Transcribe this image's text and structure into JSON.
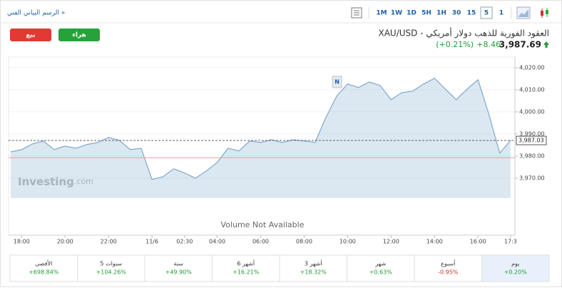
{
  "toolbar": {
    "link": "الرسم البياني الفني »",
    "timeframes": [
      "1M",
      "1W",
      "1D",
      "5H",
      "1H",
      "30",
      "15",
      "5",
      "1"
    ],
    "selected_index": 7
  },
  "header": {
    "sell": "بيع",
    "buy": "هراء",
    "title": "XAU/USD - العقود الفورية للذهب دولار أمريكي",
    "price": "3,987.69",
    "change": "+8.46",
    "change_pct": "(+0.21%)"
  },
  "chart_data": {
    "type": "area",
    "x": [
      -1,
      0,
      1,
      2,
      3,
      4,
      5,
      6,
      7,
      8,
      9,
      10,
      11,
      12,
      13,
      14,
      15,
      16,
      17,
      18,
      19,
      20,
      21,
      22,
      23,
      24,
      25,
      26,
      27,
      28,
      29,
      30,
      31,
      32,
      33,
      34,
      35,
      36,
      37,
      38,
      39,
      40,
      41,
      42,
      43,
      44,
      45
    ],
    "values": [
      3981.9,
      3982.9,
      3985.5,
      3986.8,
      3982.9,
      3984.5,
      3983.5,
      3985.2,
      3986.1,
      3988.4,
      3987.1,
      3982.9,
      3983.5,
      3969.4,
      3970.6,
      3974.2,
      3972.3,
      3970.0,
      3973.2,
      3977.1,
      3983.5,
      3982.3,
      3986.8,
      3986.1,
      3987.4,
      3986.1,
      3987.4,
      3986.8,
      3986.1,
      3997.4,
      4007.1,
      4012.6,
      4011.0,
      4013.5,
      4011.9,
      4005.5,
      4008.7,
      4009.4,
      4012.6,
      4015.2,
      4010.3,
      4005.5,
      4010.3,
      4014.5,
      3999.0,
      3981.3,
      3987.1
    ],
    "color": "#7fa8cc",
    "xlim": [
      -1.2,
      45.4
    ],
    "xticks": [
      {
        "value": 0,
        "label": "18:00"
      },
      {
        "value": 4,
        "label": "20:00"
      },
      {
        "value": 8,
        "label": "22:00"
      },
      {
        "value": 12,
        "label": "11/6"
      },
      {
        "value": 15,
        "label": "02:30"
      },
      {
        "value": 18,
        "label": "04:00"
      },
      {
        "value": 22,
        "label": "06:00"
      },
      {
        "value": 26,
        "label": "08:00"
      },
      {
        "value": 30,
        "label": "10:00"
      },
      {
        "value": 34,
        "label": "12:00"
      },
      {
        "value": 38,
        "label": "14:00"
      },
      {
        "value": 42,
        "label": "16:00"
      },
      {
        "value": 45,
        "label": "17:3"
      }
    ],
    "ylim": [
      3944.2,
      4024.8
    ],
    "yticks": [
      {
        "value": 3970,
        "label": "3,970.00"
      },
      {
        "value": 3980,
        "label": "3,980.00"
      },
      {
        "value": 3990,
        "label": "3,990.00"
      },
      {
        "value": 4000,
        "label": "4,000.00"
      },
      {
        "value": 4010,
        "label": "4,010.00"
      },
      {
        "value": 4020,
        "label": "4,020.00"
      }
    ],
    "last_price": {
      "value": 3987.03,
      "label": "3,987.03"
    },
    "previous_close": 3979.2,
    "watermark": [
      "Investing",
      ".com"
    ],
    "annotation": "Volume Not Available",
    "marker": {
      "x": 29,
      "label": "N"
    }
  },
  "performance": [
    {
      "label": "الأقصى",
      "value": "+698.84%"
    },
    {
      "label": "5 سنوات",
      "value": "+104.26%"
    },
    {
      "label": "سنة",
      "value": "+49.90%"
    },
    {
      "label": "6 أشهر",
      "value": "+16.21%"
    },
    {
      "label": "3 أشهر",
      "value": "+18.32%"
    },
    {
      "label": "شهر",
      "value": "+0.63%"
    },
    {
      "label": "أسبوع",
      "value": "-0.95%"
    },
    {
      "label": "يوم",
      "value": "+0.20%"
    }
  ],
  "performance_highlight": 7
}
